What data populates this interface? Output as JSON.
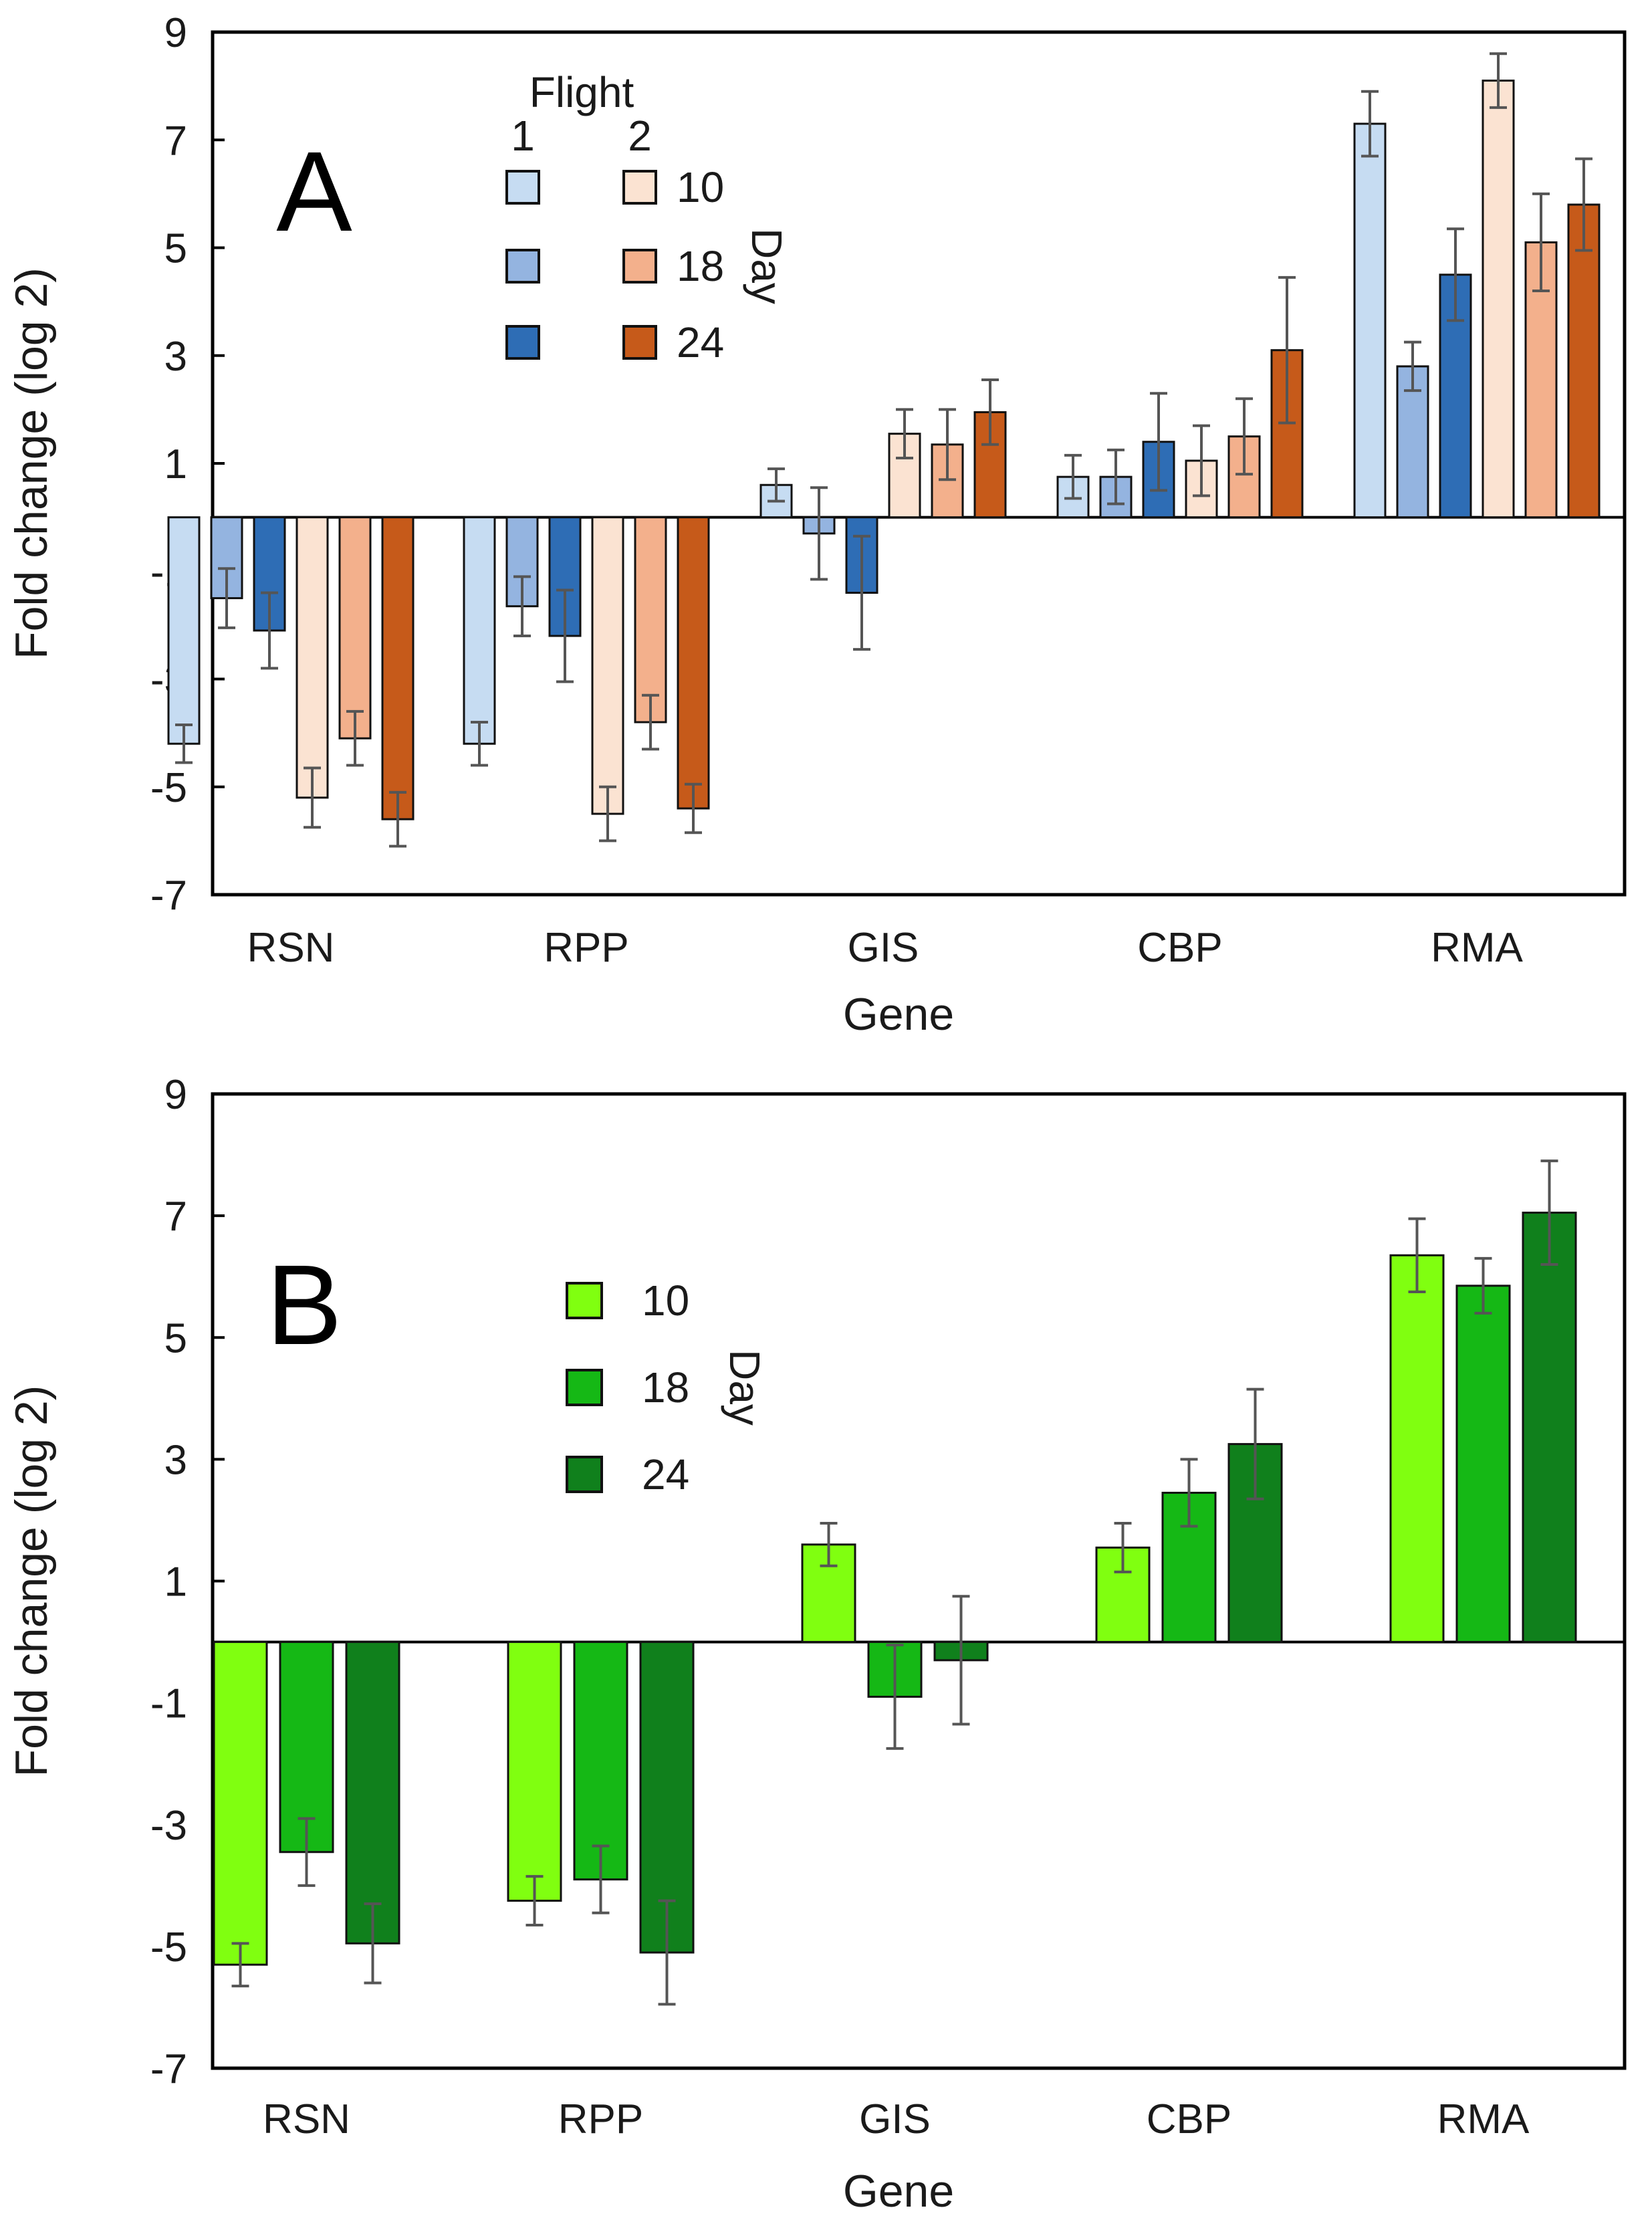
{
  "chart_data": [
    {
      "panel": "A",
      "type": "bar",
      "xlabel": "Gene",
      "ylabel": "Fold change (log 2)",
      "ylim": [
        -7,
        9
      ],
      "yticks": [
        -7,
        -5,
        -3,
        -1,
        1,
        3,
        5,
        7,
        9
      ],
      "categories": [
        "RSN",
        "RPP",
        "GIS",
        "CBP",
        "RMA"
      ],
      "legend": {
        "title": "Flight",
        "column_labels": [
          "1",
          "2"
        ],
        "side_label": "Day"
      },
      "series": [
        {
          "name": "10",
          "flight": "1",
          "color": "#c6dcf2",
          "values": [
            -4.2,
            -4.2,
            0.6,
            0.75,
            7.3
          ],
          "errors": [
            0.35,
            0.4,
            0.3,
            0.4,
            0.6
          ]
        },
        {
          "name": "18",
          "flight": "1",
          "color": "#94b4e0",
          "values": [
            -1.5,
            -1.65,
            -0.3,
            0.75,
            2.8
          ],
          "errors": [
            0.55,
            0.55,
            0.85,
            0.5,
            0.45
          ]
        },
        {
          "name": "24",
          "flight": "1",
          "color": "#2e6db5",
          "values": [
            -2.1,
            -2.2,
            -1.4,
            1.4,
            4.5
          ],
          "errors": [
            0.7,
            0.85,
            1.05,
            0.9,
            0.85
          ]
        },
        {
          "name": "10",
          "flight": "2",
          "color": "#fbe3d2",
          "values": [
            -5.2,
            -5.5,
            1.55,
            1.05,
            8.1
          ],
          "errors": [
            0.55,
            0.5,
            0.45,
            0.65,
            0.5
          ]
        },
        {
          "name": "18",
          "flight": "2",
          "color": "#f3b08c",
          "values": [
            -4.1,
            -3.8,
            1.35,
            1.5,
            5.1
          ],
          "errors": [
            0.5,
            0.5,
            0.65,
            0.7,
            0.9
          ]
        },
        {
          "name": "24",
          "flight": "2",
          "color": "#c65a1a",
          "values": [
            -5.6,
            -5.4,
            1.95,
            3.1,
            5.8
          ],
          "errors": [
            0.5,
            0.45,
            0.6,
            1.35,
            0.85
          ]
        }
      ]
    },
    {
      "panel": "B",
      "type": "bar",
      "xlabel": "Gene",
      "ylabel": "Fold change (log 2)",
      "ylim": [
        -7,
        9
      ],
      "yticks": [
        -7,
        -5,
        -3,
        -1,
        1,
        3,
        5,
        7,
        9
      ],
      "categories": [
        "RSN",
        "RPP",
        "GIS",
        "CBP",
        "RMA"
      ],
      "legend": {
        "title": "",
        "side_label": "Day"
      },
      "series": [
        {
          "name": "10",
          "color": "#80ff10",
          "values": [
            -5.3,
            -4.25,
            1.6,
            1.55,
            6.35
          ],
          "errors": [
            0.35,
            0.4,
            0.35,
            0.4,
            0.6
          ]
        },
        {
          "name": "18",
          "color": "#15b815",
          "values": [
            -3.45,
            -3.9,
            -0.9,
            2.45,
            5.85
          ],
          "errors": [
            0.55,
            0.55,
            0.85,
            0.55,
            0.45
          ]
        },
        {
          "name": "24",
          "color": "#10801c",
          "values": [
            -4.95,
            -5.1,
            -0.3,
            3.25,
            7.05
          ],
          "errors": [
            0.65,
            0.85,
            1.05,
            0.9,
            0.85
          ]
        }
      ]
    }
  ]
}
